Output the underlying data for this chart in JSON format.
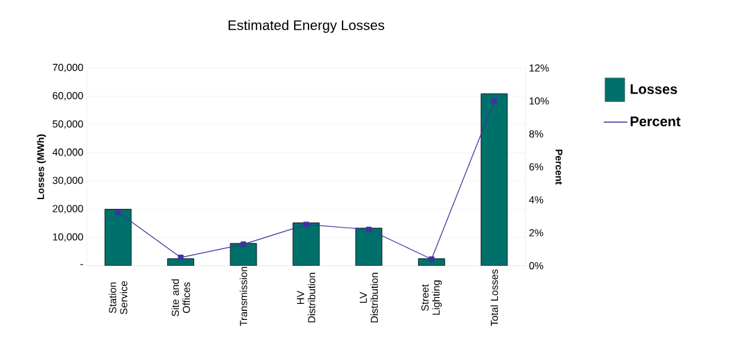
{
  "chart_data": {
    "type": "bar",
    "title": "Estimated Energy Losses",
    "categories": [
      "Station Service",
      "Site and Offices",
      "Transmission",
      "HV Distribution",
      "LV Distribution",
      "Street Lighting",
      "Total Losses"
    ],
    "series": [
      {
        "name": "Losses",
        "color": "#00706b",
        "values": [
          20000,
          2500,
          7900,
          15200,
          13300,
          2500,
          60900
        ]
      },
      {
        "name": "Percent",
        "type": "line",
        "axis": "y2",
        "color": "#3f33a0",
        "marker": "square",
        "values": [
          3.25,
          0.5,
          1.3,
          2.5,
          2.2,
          0.4,
          10.0
        ]
      }
    ],
    "ylabel": "Losses (MWh)",
    "y2label": "Percent",
    "ylim": [
      0,
      70000
    ],
    "yticks": [
      {
        "value": 0,
        "label": "-"
      },
      {
        "value": 10000,
        "label": "10,000"
      },
      {
        "value": 20000,
        "label": "20,000"
      },
      {
        "value": 30000,
        "label": "30,000"
      },
      {
        "value": 40000,
        "label": "40,000"
      },
      {
        "value": 50000,
        "label": "50,000"
      },
      {
        "value": 60000,
        "label": "60,000"
      },
      {
        "value": 70000,
        "label": "70,000"
      }
    ],
    "y2lim": [
      0,
      12
    ],
    "y2ticks": [
      {
        "value": 0,
        "label": "0%"
      },
      {
        "value": 2,
        "label": "2%"
      },
      {
        "value": 4,
        "label": "4%"
      },
      {
        "value": 6,
        "label": "6%"
      },
      {
        "value": 8,
        "label": "8%"
      },
      {
        "value": 10,
        "label": "10%"
      },
      {
        "value": 12,
        "label": "12%"
      }
    ],
    "grid": "y",
    "legend": "right"
  }
}
